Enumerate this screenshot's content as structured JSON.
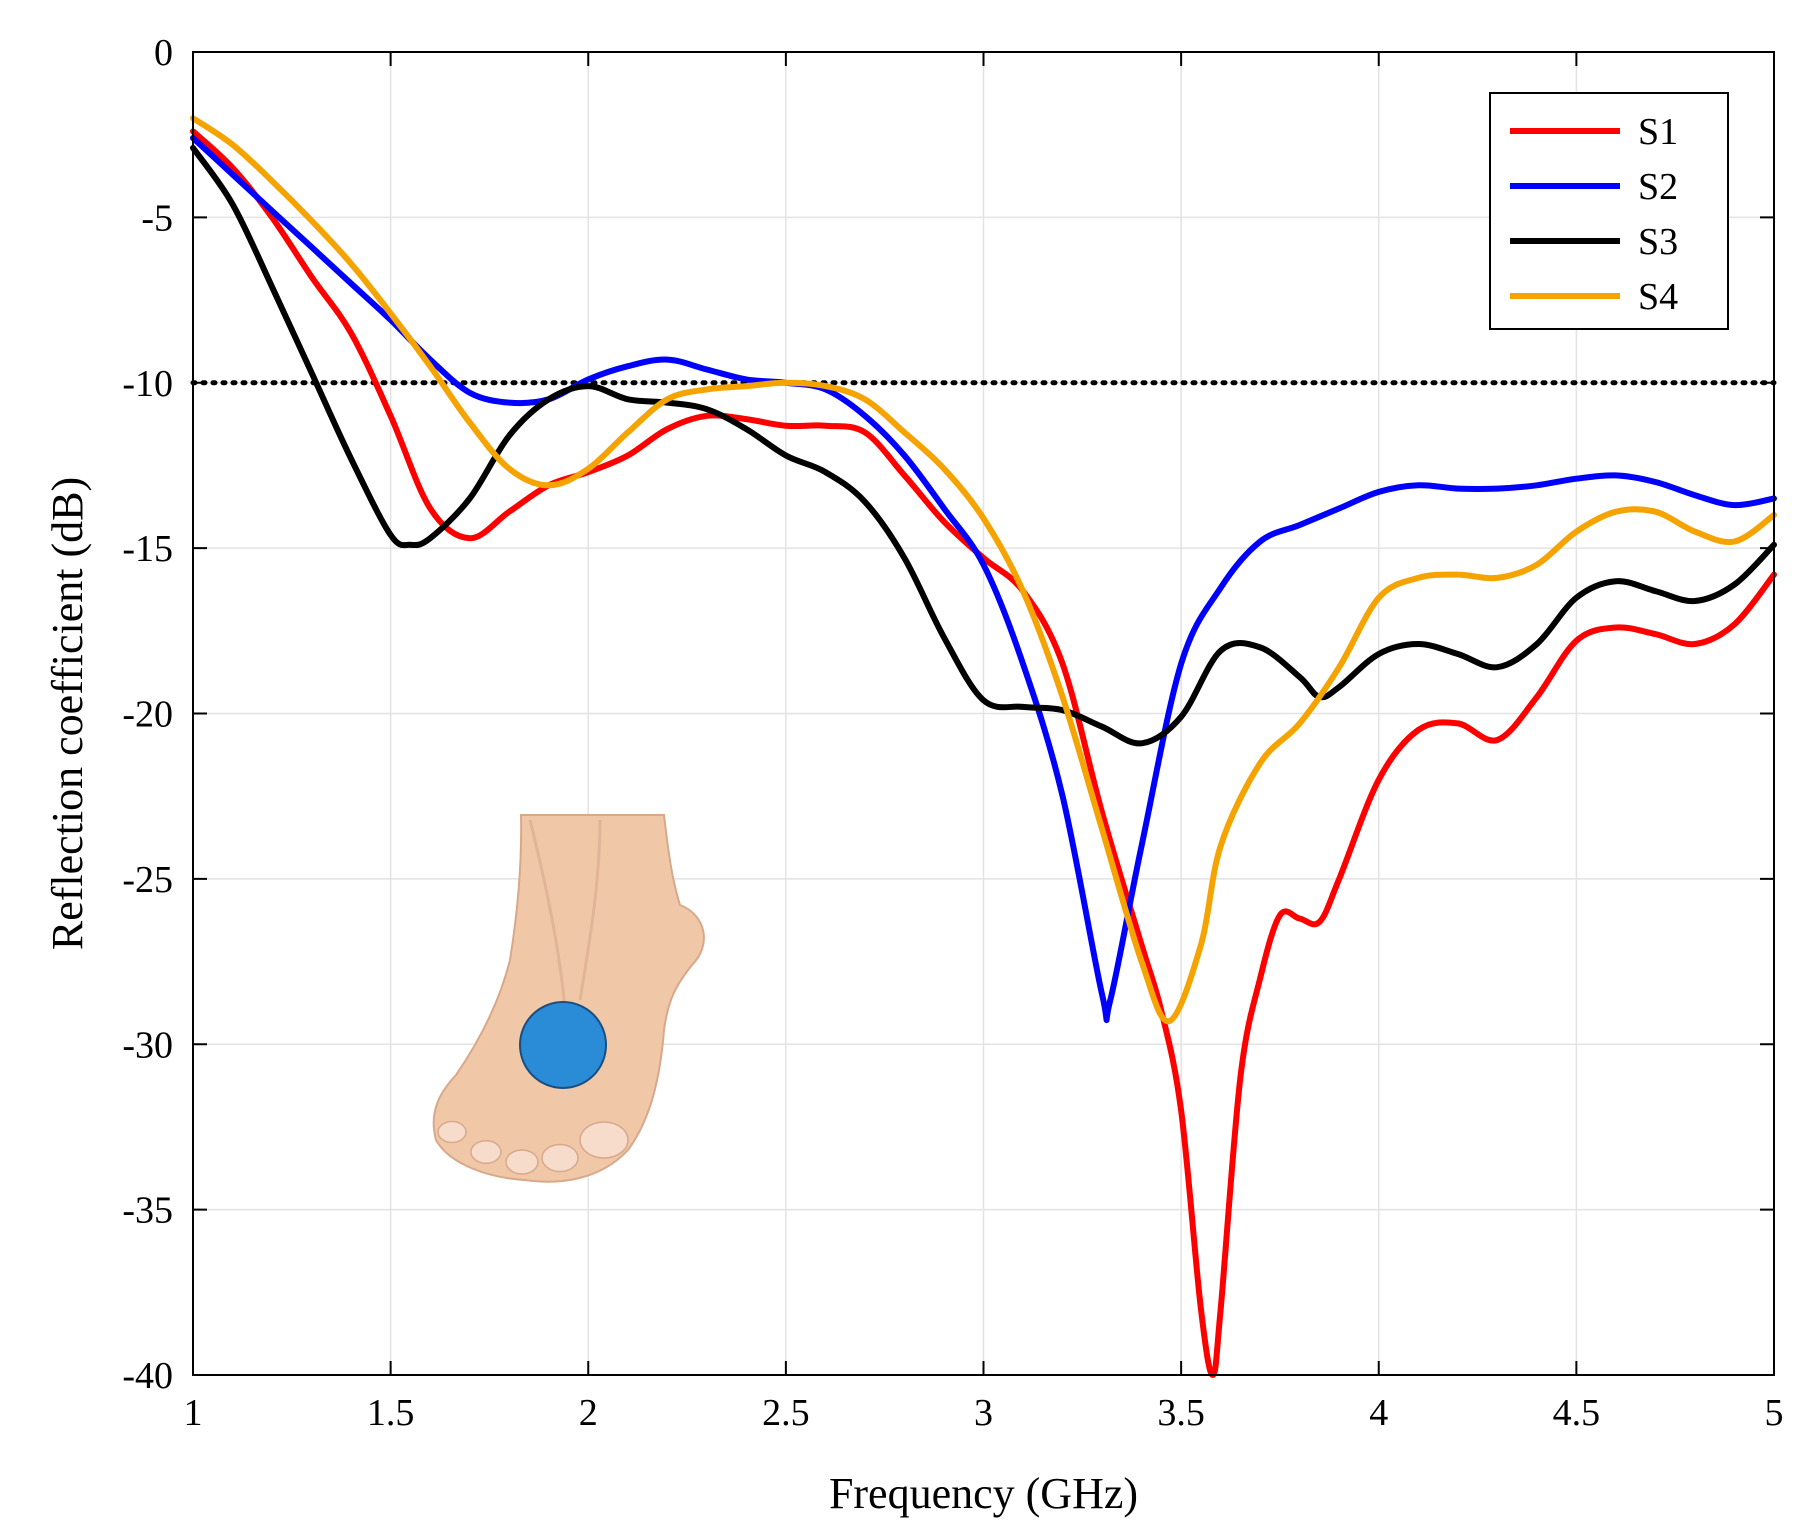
{
  "chart_data": {
    "type": "line",
    "title": "",
    "xlabel": "Frequency (GHz)",
    "ylabel": "Reflection coefficient (dB)",
    "xlim": [
      1,
      5
    ],
    "ylim": [
      -40,
      0
    ],
    "xticks": [
      1,
      1.5,
      2,
      2.5,
      3,
      3.5,
      4,
      4.5,
      5
    ],
    "xtick_labels": [
      "1",
      "1.5",
      "2",
      "2.5",
      "3",
      "3.5",
      "4",
      "4.5",
      "5"
    ],
    "yticks": [
      0,
      -5,
      -10,
      -15,
      -20,
      -25,
      -30,
      -35,
      -40
    ],
    "ytick_labels": [
      "0",
      "-5",
      "-10",
      "-15",
      "-20",
      "-25",
      "-30",
      "-35",
      "-40"
    ],
    "grid": true,
    "legend_position": "top-right",
    "reference_line": {
      "y": -10,
      "style": "dotted",
      "color": "#000000"
    },
    "inset_image": "foot-with-antenna-marker",
    "colors": {
      "marker": "#2a8bd6",
      "skin": "#f0c8a8"
    },
    "series": [
      {
        "name": "S1",
        "color": "#ff0000",
        "points": [
          [
            1,
            -2.4
          ],
          [
            1.1,
            -3.5
          ],
          [
            1.2,
            -5
          ],
          [
            1.3,
            -6.8
          ],
          [
            1.4,
            -8.5
          ],
          [
            1.5,
            -11
          ],
          [
            1.6,
            -13.8
          ],
          [
            1.7,
            -14.7
          ],
          [
            1.8,
            -13.9
          ],
          [
            1.9,
            -13.1
          ],
          [
            2,
            -12.7
          ],
          [
            2.1,
            -12.2
          ],
          [
            2.2,
            -11.4
          ],
          [
            2.3,
            -11
          ],
          [
            2.4,
            -11.1
          ],
          [
            2.5,
            -11.3
          ],
          [
            2.6,
            -11.3
          ],
          [
            2.7,
            -11.5
          ],
          [
            2.8,
            -12.8
          ],
          [
            2.9,
            -14.2
          ],
          [
            3,
            -15.3
          ],
          [
            3.1,
            -16.3
          ],
          [
            3.2,
            -18.5
          ],
          [
            3.3,
            -23
          ],
          [
            3.4,
            -27
          ],
          [
            3.45,
            -29
          ],
          [
            3.5,
            -32
          ],
          [
            3.55,
            -38
          ],
          [
            3.58,
            -40
          ],
          [
            3.6,
            -38
          ],
          [
            3.65,
            -31
          ],
          [
            3.7,
            -28
          ],
          [
            3.75,
            -26.1
          ],
          [
            3.8,
            -26.2
          ],
          [
            3.85,
            -26.3
          ],
          [
            3.9,
            -25
          ],
          [
            4,
            -22
          ],
          [
            4.1,
            -20.5
          ],
          [
            4.2,
            -20.3
          ],
          [
            4.3,
            -20.8
          ],
          [
            4.4,
            -19.5
          ],
          [
            4.5,
            -17.8
          ],
          [
            4.6,
            -17.4
          ],
          [
            4.7,
            -17.6
          ],
          [
            4.8,
            -17.9
          ],
          [
            4.9,
            -17.3
          ],
          [
            5,
            -15.8
          ]
        ]
      },
      {
        "name": "S2",
        "color": "#0000ff",
        "points": [
          [
            1,
            -2.6
          ],
          [
            1.1,
            -3.7
          ],
          [
            1.2,
            -4.8
          ],
          [
            1.3,
            -5.9
          ],
          [
            1.4,
            -7
          ],
          [
            1.5,
            -8.1
          ],
          [
            1.6,
            -9.3
          ],
          [
            1.7,
            -10.3
          ],
          [
            1.8,
            -10.6
          ],
          [
            1.9,
            -10.5
          ],
          [
            2,
            -9.9
          ],
          [
            2.1,
            -9.5
          ],
          [
            2.2,
            -9.3
          ],
          [
            2.3,
            -9.6
          ],
          [
            2.4,
            -9.9
          ],
          [
            2.5,
            -10
          ],
          [
            2.6,
            -10.2
          ],
          [
            2.7,
            -11
          ],
          [
            2.8,
            -12.2
          ],
          [
            2.9,
            -13.8
          ],
          [
            3,
            -15.5
          ],
          [
            3.1,
            -18.5
          ],
          [
            3.2,
            -22.5
          ],
          [
            3.3,
            -28.5
          ],
          [
            3.32,
            -28.7
          ],
          [
            3.4,
            -24
          ],
          [
            3.5,
            -18.5
          ],
          [
            3.6,
            -16.2
          ],
          [
            3.7,
            -14.8
          ],
          [
            3.8,
            -14.3
          ],
          [
            3.9,
            -13.8
          ],
          [
            4,
            -13.3
          ],
          [
            4.1,
            -13.1
          ],
          [
            4.2,
            -13.2
          ],
          [
            4.3,
            -13.2
          ],
          [
            4.4,
            -13.1
          ],
          [
            4.5,
            -12.9
          ],
          [
            4.6,
            -12.8
          ],
          [
            4.7,
            -13
          ],
          [
            4.8,
            -13.4
          ],
          [
            4.9,
            -13.7
          ],
          [
            5,
            -13.5
          ]
        ]
      },
      {
        "name": "S3",
        "color": "#000000",
        "points": [
          [
            1,
            -2.9
          ],
          [
            1.1,
            -4.6
          ],
          [
            1.2,
            -7.1
          ],
          [
            1.3,
            -9.7
          ],
          [
            1.4,
            -12.3
          ],
          [
            1.5,
            -14.6
          ],
          [
            1.55,
            -14.9
          ],
          [
            1.6,
            -14.7
          ],
          [
            1.7,
            -13.5
          ],
          [
            1.8,
            -11.6
          ],
          [
            1.9,
            -10.5
          ],
          [
            2,
            -10.1
          ],
          [
            2.1,
            -10.5
          ],
          [
            2.2,
            -10.6
          ],
          [
            2.3,
            -10.8
          ],
          [
            2.4,
            -11.4
          ],
          [
            2.5,
            -12.2
          ],
          [
            2.6,
            -12.7
          ],
          [
            2.7,
            -13.6
          ],
          [
            2.8,
            -15.3
          ],
          [
            2.9,
            -17.7
          ],
          [
            3,
            -19.6
          ],
          [
            3.1,
            -19.8
          ],
          [
            3.2,
            -19.9
          ],
          [
            3.3,
            -20.4
          ],
          [
            3.4,
            -20.9
          ],
          [
            3.5,
            -20.1
          ],
          [
            3.6,
            -18.1
          ],
          [
            3.7,
            -18
          ],
          [
            3.8,
            -18.9
          ],
          [
            3.85,
            -19.5
          ],
          [
            3.9,
            -19.2
          ],
          [
            4,
            -18.2
          ],
          [
            4.1,
            -17.9
          ],
          [
            4.2,
            -18.2
          ],
          [
            4.3,
            -18.6
          ],
          [
            4.4,
            -17.9
          ],
          [
            4.5,
            -16.5
          ],
          [
            4.6,
            -16
          ],
          [
            4.7,
            -16.3
          ],
          [
            4.8,
            -16.6
          ],
          [
            4.9,
            -16.1
          ],
          [
            5,
            -14.9
          ]
        ]
      },
      {
        "name": "S4",
        "color": "#f5a300",
        "points": [
          [
            1,
            -2
          ],
          [
            1.1,
            -2.8
          ],
          [
            1.2,
            -3.9
          ],
          [
            1.3,
            -5.1
          ],
          [
            1.4,
            -6.4
          ],
          [
            1.5,
            -7.9
          ],
          [
            1.6,
            -9.5
          ],
          [
            1.7,
            -11.2
          ],
          [
            1.8,
            -12.6
          ],
          [
            1.9,
            -13.1
          ],
          [
            2,
            -12.6
          ],
          [
            2.1,
            -11.5
          ],
          [
            2.2,
            -10.5
          ],
          [
            2.3,
            -10.2
          ],
          [
            2.4,
            -10.1
          ],
          [
            2.5,
            -10
          ],
          [
            2.6,
            -10.1
          ],
          [
            2.7,
            -10.5
          ],
          [
            2.8,
            -11.5
          ],
          [
            2.9,
            -12.6
          ],
          [
            3,
            -14.1
          ],
          [
            3.1,
            -16.3
          ],
          [
            3.2,
            -19.5
          ],
          [
            3.3,
            -23.5
          ],
          [
            3.4,
            -27.5
          ],
          [
            3.47,
            -29.3
          ],
          [
            3.55,
            -27
          ],
          [
            3.6,
            -24
          ],
          [
            3.7,
            -21.5
          ],
          [
            3.8,
            -20.3
          ],
          [
            3.9,
            -18.6
          ],
          [
            4,
            -16.5
          ],
          [
            4.1,
            -15.9
          ],
          [
            4.2,
            -15.8
          ],
          [
            4.3,
            -15.9
          ],
          [
            4.4,
            -15.5
          ],
          [
            4.5,
            -14.5
          ],
          [
            4.6,
            -13.9
          ],
          [
            4.7,
            -13.9
          ],
          [
            4.8,
            -14.5
          ],
          [
            4.9,
            -14.8
          ],
          [
            5,
            -14
          ]
        ]
      }
    ]
  }
}
